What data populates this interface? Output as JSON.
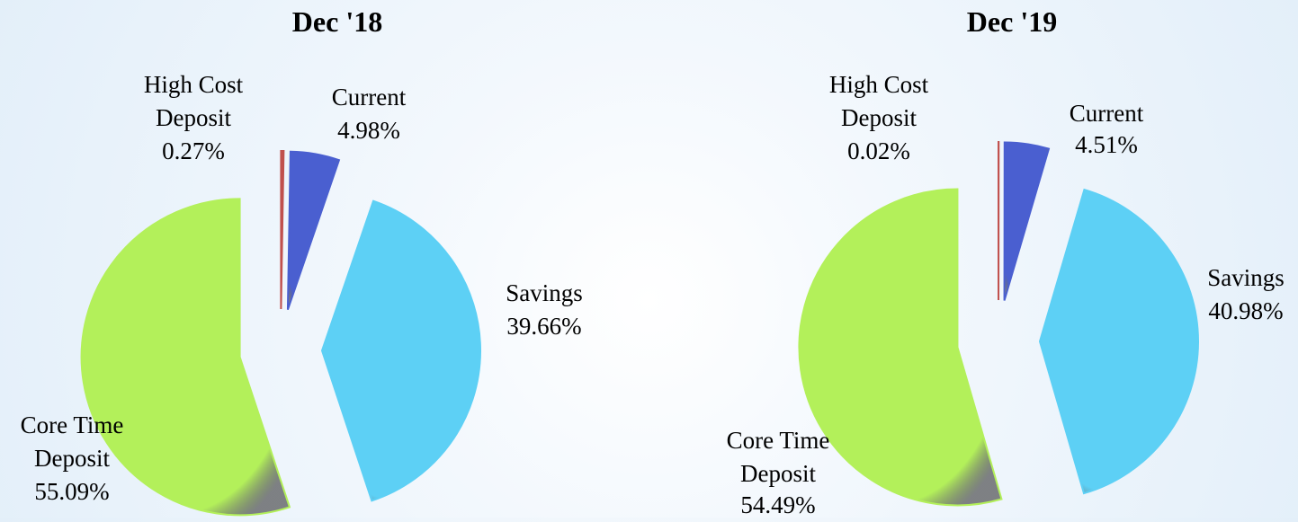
{
  "chart_data": [
    {
      "type": "pie",
      "title": "Dec '18",
      "categories": [
        "High Cost Deposit",
        "Current",
        "Savings",
        "Core Time Deposit"
      ],
      "values": [
        0.27,
        4.98,
        39.66,
        55.09
      ],
      "value_labels": [
        "0.27%",
        "4.98%",
        "39.66%",
        "55.09%"
      ],
      "colors": [
        "#c0504d",
        "#4a5fd0",
        "#5dd0f5",
        "#b3f05a"
      ]
    },
    {
      "type": "pie",
      "title": "Dec '19",
      "categories": [
        "High Cost Deposit",
        "Current",
        "Savings",
        "Core Time Deposit"
      ],
      "values": [
        0.02,
        4.51,
        40.98,
        54.49
      ],
      "value_labels": [
        "0.02%",
        "4.51%",
        "40.98%",
        "54.49%"
      ],
      "colors": [
        "#c0504d",
        "#4a5fd0",
        "#5dd0f5",
        "#b3f05a"
      ]
    }
  ]
}
